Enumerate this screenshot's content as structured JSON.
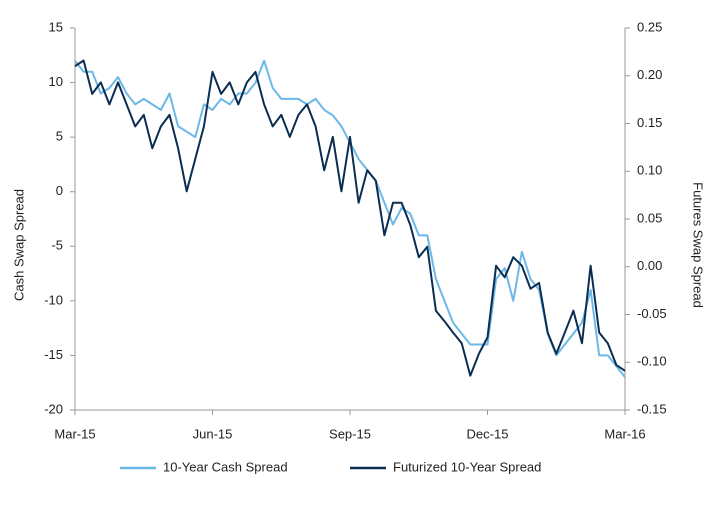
{
  "chart_data": {
    "type": "line",
    "categories": [
      "Mar-15",
      null,
      null,
      null,
      null,
      null,
      null,
      null,
      null,
      null,
      null,
      null,
      null,
      null,
      null,
      null,
      "Jun-15",
      null,
      null,
      null,
      null,
      null,
      null,
      null,
      null,
      null,
      null,
      null,
      null,
      null,
      null,
      null,
      "Sep-15",
      null,
      null,
      null,
      null,
      null,
      null,
      null,
      null,
      null,
      null,
      null,
      null,
      null,
      null,
      null,
      "Dec-15",
      null,
      null,
      null,
      null,
      null,
      null,
      null,
      null,
      null,
      null,
      null,
      null,
      null,
      null,
      null,
      "Mar-16"
    ],
    "ylabel": "Cash Swap Spread",
    "y2label": "Futures Swap Spread",
    "ylim": [
      -20,
      15
    ],
    "yticks": [
      -20,
      -15,
      -10,
      -5,
      0,
      5,
      10,
      15
    ],
    "y2lim": [
      -0.15,
      0.25
    ],
    "y2ticks": [
      {
        "value": -0.15,
        "label": "-0.15"
      },
      {
        "value": -0.1,
        "label": "-0.10"
      },
      {
        "value": -0.05,
        "label": "-0.05"
      },
      {
        "value": 0,
        "label": "0.00"
      },
      {
        "value": 0.05,
        "label": "0.05"
      },
      {
        "value": 0.1,
        "label": "0.10"
      },
      {
        "value": 0.15,
        "label": "0.15"
      },
      {
        "value": 0.2,
        "label": "0.20"
      },
      {
        "value": 0.25,
        "label": "0.25"
      }
    ],
    "legend": "bottom",
    "series": [
      {
        "name": "10-Year Cash Spread",
        "color": "#6cb8e6",
        "values": [
          12,
          11,
          11,
          9,
          9.5,
          10.5,
          9,
          8,
          8.5,
          8,
          7.5,
          9,
          6,
          5.5,
          5,
          8,
          7.5,
          8.5,
          8,
          9,
          9,
          10,
          12,
          9.5,
          8.5,
          8.5,
          8.5,
          8,
          8.5,
          7.5,
          7,
          6,
          4.5,
          3,
          2,
          1,
          -1,
          -3,
          -1.5,
          -2,
          -4,
          -4,
          -8,
          -10,
          -12,
          -13,
          -14,
          -14,
          -14,
          -8,
          -7,
          -10,
          -5.5,
          -8,
          -9,
          -13,
          -15,
          -14,
          -13,
          -12,
          -9,
          -15,
          -15,
          -16,
          -17
        ]
      },
      {
        "name": "Futurized 10-Year Spread",
        "color": "#0b2d52",
        "axis": "y2",
        "values": [
          0.21,
          0.216,
          0.181,
          0.193,
          0.17,
          0.193,
          0.17,
          0.147,
          0.159,
          0.124,
          0.147,
          0.159,
          0.124,
          0.079,
          0.113,
          0.147,
          0.204,
          0.181,
          0.193,
          0.17,
          0.193,
          0.204,
          0.17,
          0.147,
          0.159,
          0.136,
          0.159,
          0.17,
          0.147,
          0.101,
          0.136,
          0.079,
          0.136,
          0.067,
          0.101,
          0.09,
          0.033,
          0.067,
          0.067,
          0.044,
          0.01,
          0.021,
          -0.046,
          -0.057,
          -0.069,
          -0.08,
          -0.114,
          -0.091,
          -0.074,
          0.001,
          -0.011,
          0.01,
          0.001,
          -0.023,
          -0.017,
          -0.069,
          -0.091,
          -0.069,
          -0.046,
          -0.08,
          0.001,
          -0.069,
          -0.08,
          -0.103,
          -0.109
        ]
      }
    ]
  }
}
